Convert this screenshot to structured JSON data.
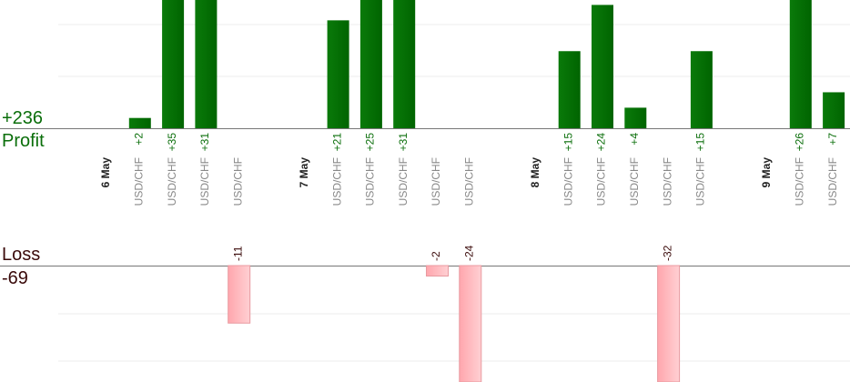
{
  "summary": {
    "profit_total": "+236",
    "profit_label": "Profit",
    "loss_label": "Loss",
    "loss_total": "-69"
  },
  "colors": {
    "profit_bar": "#006400",
    "loss_bar": "#ffb3b8",
    "profit_text": "#0a6e0a",
    "loss_text": "#3a0a0a"
  },
  "chart_data": {
    "type": "bar",
    "grid": true,
    "groups": [
      {
        "date": "6 May",
        "trades": [
          {
            "label": "USD/CHF",
            "value": 2
          },
          {
            "label": "USD/CHF",
            "value": 35
          },
          {
            "label": "USD/CHF",
            "value": 31
          },
          {
            "label": "USD/CHF",
            "value": -11
          }
        ]
      },
      {
        "date": "7 May",
        "trades": [
          {
            "label": "USD/CHF",
            "value": 21
          },
          {
            "label": "USD/CHF",
            "value": 25
          },
          {
            "label": "USD/CHF",
            "value": 31
          },
          {
            "label": "USD/CHF",
            "value": -2
          },
          {
            "label": "USD/CHF",
            "value": -24
          }
        ]
      },
      {
        "date": "8 May",
        "trades": [
          {
            "label": "USD/CHF",
            "value": 15
          },
          {
            "label": "USD/CHF",
            "value": 24
          },
          {
            "label": "USD/CHF",
            "value": 4
          },
          {
            "label": "USD/CHF",
            "value": -32
          },
          {
            "label": "USD/CHF",
            "value": 15
          }
        ]
      },
      {
        "date": "9 May",
        "trades": [
          {
            "label": "USD/CHF",
            "value": 26
          },
          {
            "label": "USD/CHF",
            "value": 7
          }
        ]
      }
    ]
  }
}
